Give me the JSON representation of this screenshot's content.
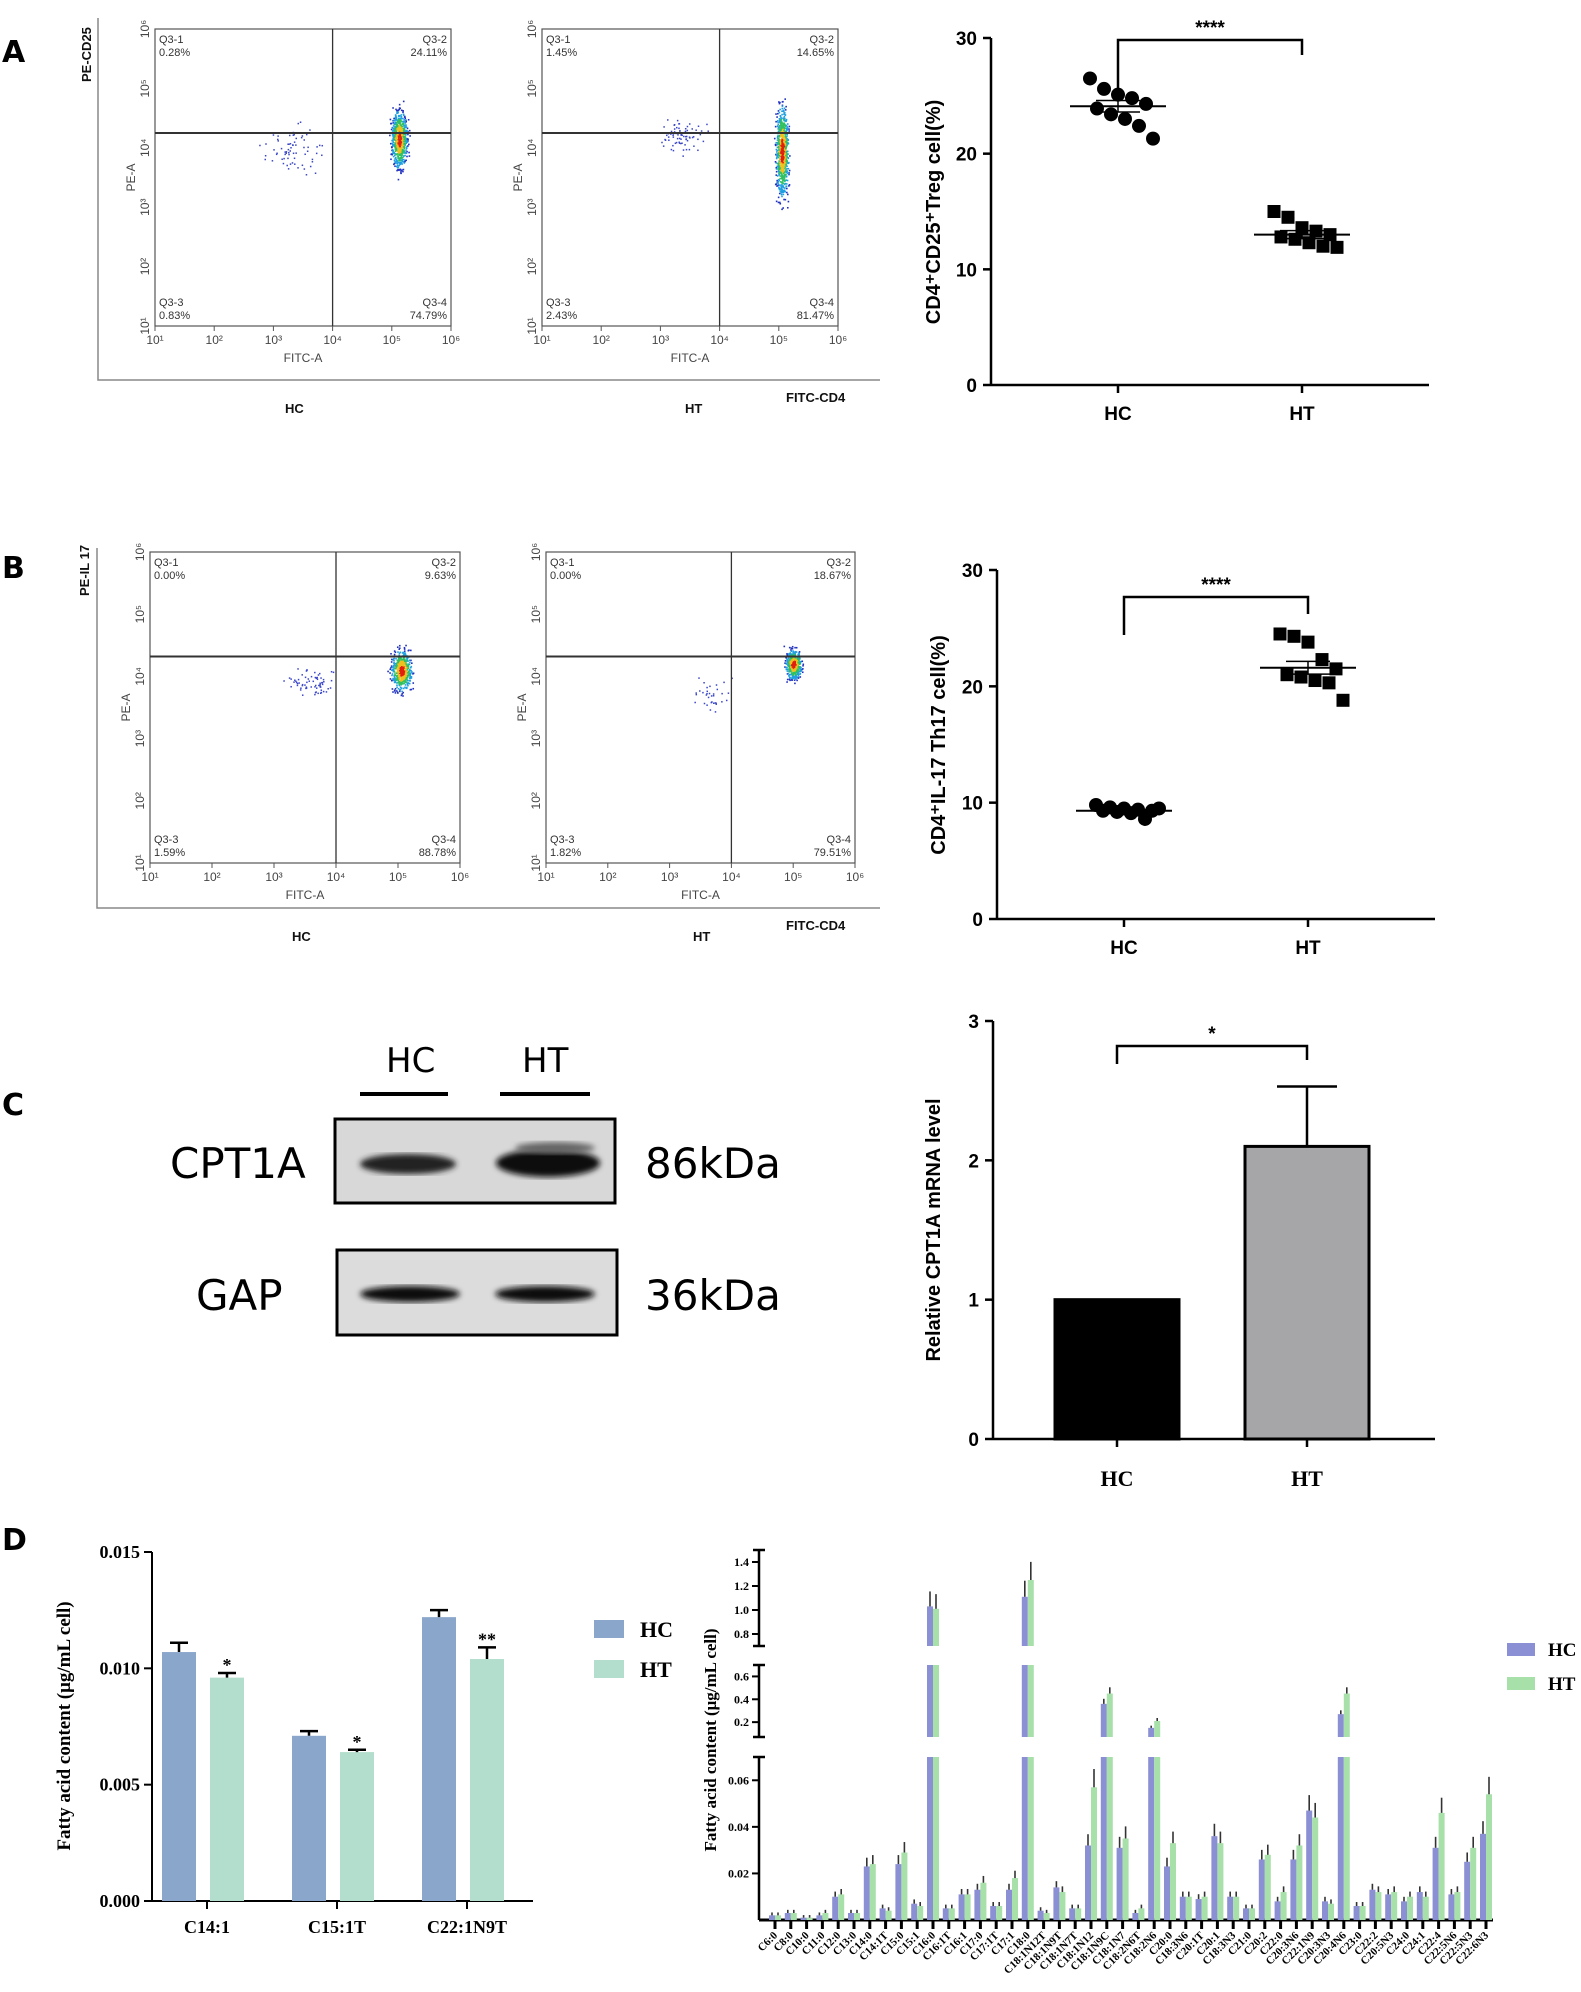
{
  "panels": {
    "a": "A",
    "b": "B",
    "c": "C",
    "d": "D"
  },
  "flow": {
    "log_ticks": [
      "10¹",
      "10²",
      "10³",
      "10⁴",
      "10⁵",
      "10⁶"
    ],
    "x_axis": "FITC-A",
    "y_axis": "PE-A",
    "gate_log10": {
      "x": 4,
      "y_A": 4.25,
      "y_B": 4.32
    },
    "A": {
      "channel_y": "PE-CD25",
      "channel_x": "FITC-CD4",
      "plots": [
        {
          "group": "HC",
          "q1": "Q3-1",
          "q1v": "0.28%",
          "q2": "Q3-2",
          "q2v": "24.11%",
          "q3": "Q3-3",
          "q3v": "0.83%",
          "q4": "Q3-4",
          "q4v": "74.79%"
        },
        {
          "group": "HT",
          "q1": "Q3-1",
          "q1v": "1.45%",
          "q2": "Q3-2",
          "q2v": "14.65%",
          "q3": "Q3-3",
          "q3v": "2.43%",
          "q4": "Q3-4",
          "q4v": "81.47%"
        }
      ]
    },
    "B": {
      "channel_y": "PE-IL 17",
      "channel_x": "FITC-CD4",
      "plots": [
        {
          "group": "HC",
          "q1": "Q3-1",
          "q1v": "0.00%",
          "q2": "Q3-2",
          "q2v": "9.63%",
          "q3": "Q3-3",
          "q3v": "1.59%",
          "q4": "Q3-4",
          "q4v": "88.78%"
        },
        {
          "group": "HT",
          "q1": "Q3-1",
          "q1v": "0.00%",
          "q2": "Q3-2",
          "q2v": "18.67%",
          "q3": "Q3-3",
          "q3v": "1.82%",
          "q4": "Q3-4",
          "q4v": "79.51%"
        }
      ]
    }
  },
  "blot": {
    "lanes": [
      "HC",
      "HT"
    ],
    "bands": [
      {
        "protein": "CPT1A",
        "size": "86kDa"
      },
      {
        "protein": "GAP",
        "size": "36kDa"
      }
    ]
  },
  "chart_data": [
    {
      "type": "scatter",
      "panel": "A",
      "ylabel": "CD4⁺CD25⁺Treg cell(%)",
      "categories": [
        "HC",
        "HT"
      ],
      "ylim": [
        0,
        30
      ],
      "yticks": [
        0,
        10,
        20,
        30
      ],
      "series": [
        {
          "values": [
            26.5,
            25.6,
            25.1,
            24.8,
            24.3,
            23.9,
            23.4,
            23.0,
            22.4,
            21.3
          ],
          "marker": "circle"
        },
        {
          "values": [
            15.0,
            14.5,
            13.6,
            13.3,
            13.0,
            12.8,
            12.6,
            12.3,
            12.0,
            11.9
          ],
          "marker": "square"
        }
      ],
      "means": [
        24.1,
        13.0
      ],
      "sem": [
        0.5,
        0.35
      ],
      "significance": "****"
    },
    {
      "type": "scatter",
      "panel": "B",
      "ylabel": "CD4⁺IL-17 Th17 cell(%)",
      "categories": [
        "HC",
        "HT"
      ],
      "ylim": [
        0,
        30
      ],
      "yticks": [
        0,
        10,
        20,
        30
      ],
      "series": [
        {
          "values": [
            9.8,
            9.6,
            9.5,
            9.4,
            9.3,
            9.3,
            9.2,
            9.1,
            8.6,
            9.5
          ],
          "marker": "circle"
        },
        {
          "values": [
            24.5,
            24.3,
            23.8,
            22.3,
            21.5,
            21.0,
            20.8,
            20.5,
            20.3,
            18.8
          ],
          "marker": "square"
        }
      ],
      "means": [
        9.3,
        21.6
      ],
      "sem": [
        0.1,
        0.55
      ],
      "significance": "****"
    },
    {
      "type": "bar",
      "panel": "C",
      "ylabel": "Relative CPT1A mRNA level",
      "categories": [
        "HC",
        "HT"
      ],
      "values": [
        1.0,
        2.1
      ],
      "errors": [
        0,
        0.43
      ],
      "colors": [
        "#000000",
        "#a6a6a8"
      ],
      "ylim": [
        0,
        3
      ],
      "yticks": [
        0,
        1,
        2,
        3
      ],
      "significance": "*"
    },
    {
      "type": "bar",
      "panel": "D-left",
      "ylabel": "Fatty acid content (μg/mL cell)",
      "categories": [
        "C14:1",
        "C15:1T",
        "C22:1N9T"
      ],
      "ylim": [
        0,
        0.015
      ],
      "yticks": [
        "0.000",
        "0.005",
        "0.010",
        "0.015"
      ],
      "legend_position": "right",
      "series": [
        {
          "name": "HC",
          "color": "#8aa6cb",
          "values": [
            0.0107,
            0.0071,
            0.0122
          ],
          "errors": [
            0.0004,
            0.0002,
            0.0003
          ]
        },
        {
          "name": "HT",
          "color": "#b3ddcc",
          "values": [
            0.0096,
            0.0064,
            0.0104
          ],
          "errors": [
            0.0002,
            0.0001,
            0.0005
          ]
        }
      ],
      "significance": [
        "*",
        "*",
        "**"
      ]
    },
    {
      "type": "bar",
      "panel": "D-right",
      "ylabel": "Fatty acid content (μg/mL cell)",
      "broken_axis_segments": [
        {
          "range": [
            0,
            0.07
          ],
          "ticks": [
            "0.02",
            "0.04",
            "0.06"
          ]
        },
        {
          "range": [
            0.07,
            0.7
          ],
          "ticks": [
            "0.2",
            "0.4",
            "0.6"
          ]
        },
        {
          "range": [
            0.7,
            1.5
          ],
          "ticks": [
            "0.8",
            "1.0",
            "1.2",
            "1.4"
          ]
        }
      ],
      "legend_position": "right",
      "categories": [
        "C6:0",
        "C8:0",
        "C10:0",
        "C11:0",
        "C12:0",
        "C13:0",
        "C14:0",
        "C14:1T",
        "C15:0",
        "C15:1",
        "C16:0",
        "C16:1T",
        "C16:1",
        "C17:0",
        "C17:1T",
        "C17:1",
        "C18:0",
        "C18:1N12T",
        "C18:1N9T",
        "C18:1N7T",
        "C18:1N12",
        "C18:1N9C",
        "C18:1N7",
        "C18:2N6T",
        "C18:2N6",
        "C20:0",
        "C18:3N6",
        "C20:1T",
        "C20:1",
        "C18:3N3",
        "C21:0",
        "C20:2",
        "C22:0",
        "C20:3N6",
        "C22:1N9",
        "C20:3N3",
        "C20:4N6",
        "C23:0",
        "C22:2",
        "C20:5N3",
        "C24:0",
        "C24:1",
        "C22:4",
        "C22:5N6",
        "C22:5N3",
        "C22:6N3"
      ],
      "series": [
        {
          "name": "HC",
          "color": "#8b8fd3",
          "values": [
            0.002,
            0.003,
            0.001,
            0.002,
            0.01,
            0.003,
            0.023,
            0.005,
            0.024,
            0.007,
            1.03,
            0.005,
            0.011,
            0.013,
            0.006,
            0.013,
            1.11,
            0.004,
            0.014,
            0.005,
            0.032,
            0.36,
            0.031,
            0.003,
            0.15,
            0.023,
            0.01,
            0.009,
            0.036,
            0.01,
            0.005,
            0.026,
            0.008,
            0.026,
            0.047,
            0.008,
            0.27,
            0.006,
            0.013,
            0.011,
            0.008,
            0.012,
            0.031,
            0.011,
            0.025,
            0.037
          ]
        },
        {
          "name": "HT",
          "color": "#a8e0aa",
          "values": [
            0.002,
            0.003,
            0.001,
            0.003,
            0.011,
            0.003,
            0.024,
            0.004,
            0.029,
            0.006,
            1.01,
            0.005,
            0.011,
            0.016,
            0.006,
            0.018,
            1.25,
            0.003,
            0.012,
            0.005,
            0.057,
            0.45,
            0.035,
            0.005,
            0.21,
            0.033,
            0.01,
            0.01,
            0.033,
            0.01,
            0.005,
            0.028,
            0.012,
            0.032,
            0.044,
            0.007,
            0.45,
            0.006,
            0.012,
            0.012,
            0.01,
            0.01,
            0.046,
            0.012,
            0.031,
            0.054
          ]
        }
      ]
    }
  ]
}
